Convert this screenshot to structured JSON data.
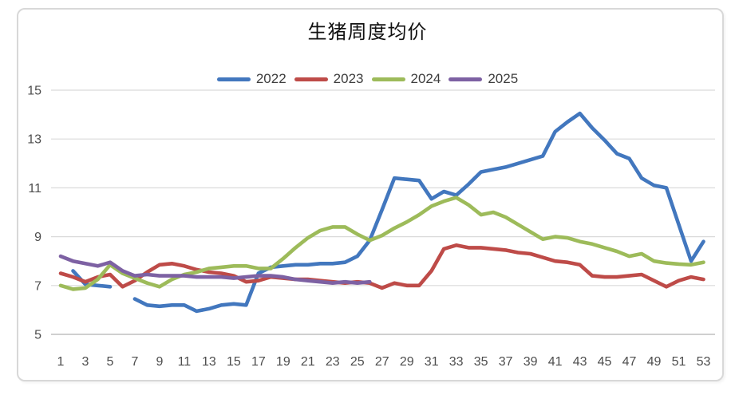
{
  "card": {
    "border_color": "#d8d8d8",
    "background": "#ffffff"
  },
  "chart_data": {
    "type": "line",
    "title": "生猪周度均价",
    "xlabel": "",
    "ylabel": "",
    "ylim": [
      5,
      15
    ],
    "y_ticks": [
      15,
      13,
      11,
      9,
      7,
      5
    ],
    "x_tick_labels": [
      "1",
      "3",
      "5",
      "7",
      "9",
      "11",
      "13",
      "15",
      "17",
      "19",
      "21",
      "23",
      "25",
      "27",
      "29",
      "31",
      "33",
      "35",
      "37",
      "39",
      "41",
      "43",
      "45",
      "47",
      "49",
      "51",
      "53"
    ],
    "x_range": [
      1,
      53
    ],
    "grid": "horizontal",
    "legend_position": "top",
    "axis_text_color": "#4d4d4d",
    "gridline_color": "#dadada",
    "axisline_color": "#bfbfbf",
    "series": [
      {
        "name": "2022",
        "color": "#4277BE",
        "values": [
          null,
          7.6,
          7.05,
          7.0,
          6.95,
          null,
          6.45,
          6.2,
          6.15,
          6.2,
          6.2,
          5.95,
          6.05,
          6.2,
          6.25,
          6.2,
          7.5,
          7.75,
          7.8,
          7.85,
          7.85,
          7.9,
          7.9,
          7.95,
          8.2,
          8.85,
          10.1,
          11.4,
          11.35,
          11.3,
          10.55,
          10.85,
          10.7,
          11.15,
          11.65,
          11.75,
          11.85,
          12.0,
          12.15,
          12.3,
          13.3,
          13.7,
          14.05,
          13.45,
          12.95,
          12.4,
          12.2,
          11.4,
          11.1,
          11.0,
          9.5,
          8.0,
          8.8
        ]
      },
      {
        "name": "2023",
        "color": "#BE4B48",
        "values": [
          7.5,
          7.35,
          7.15,
          7.35,
          7.45,
          6.95,
          7.2,
          7.55,
          7.85,
          7.9,
          7.8,
          7.65,
          7.55,
          7.5,
          7.4,
          7.15,
          7.2,
          7.35,
          7.3,
          7.25,
          7.25,
          7.2,
          7.15,
          7.1,
          7.15,
          7.1,
          6.9,
          7.1,
          7.0,
          7.0,
          7.6,
          8.5,
          8.65,
          8.55,
          8.55,
          8.5,
          8.45,
          8.35,
          8.3,
          8.15,
          8.0,
          7.95,
          7.85,
          7.4,
          7.35,
          7.35,
          7.4,
          7.45,
          7.2,
          6.95,
          7.2,
          7.35,
          7.25
        ]
      },
      {
        "name": "2024",
        "color": "#9DBB5A",
        "values": [
          7.0,
          6.85,
          6.9,
          7.25,
          7.85,
          7.5,
          7.3,
          7.1,
          6.95,
          7.25,
          7.45,
          7.55,
          7.7,
          7.75,
          7.8,
          7.8,
          7.7,
          7.7,
          8.1,
          8.55,
          8.95,
          9.25,
          9.4,
          9.4,
          9.1,
          8.85,
          9.05,
          9.35,
          9.6,
          9.9,
          10.25,
          10.45,
          10.6,
          10.3,
          9.9,
          10.0,
          9.8,
          9.5,
          9.2,
          8.9,
          9.0,
          8.95,
          8.8,
          8.7,
          8.55,
          8.4,
          8.2,
          8.3,
          8.0,
          7.92,
          7.88,
          7.85,
          7.95
        ]
      },
      {
        "name": "2025",
        "color": "#7D61A3",
        "values": [
          8.2,
          8.0,
          7.9,
          7.8,
          7.95,
          7.6,
          7.4,
          7.45,
          7.4,
          7.4,
          7.4,
          7.35,
          7.35,
          7.35,
          7.3,
          7.35,
          7.4,
          7.4,
          7.35,
          7.25,
          7.2,
          7.15,
          7.1,
          7.15,
          7.1,
          7.15,
          null,
          null,
          null,
          null,
          null,
          null,
          null,
          null,
          null,
          null,
          null,
          null,
          null,
          null,
          null,
          null,
          null,
          null,
          null,
          null,
          null,
          null,
          null,
          null,
          null,
          null,
          null
        ]
      }
    ]
  }
}
